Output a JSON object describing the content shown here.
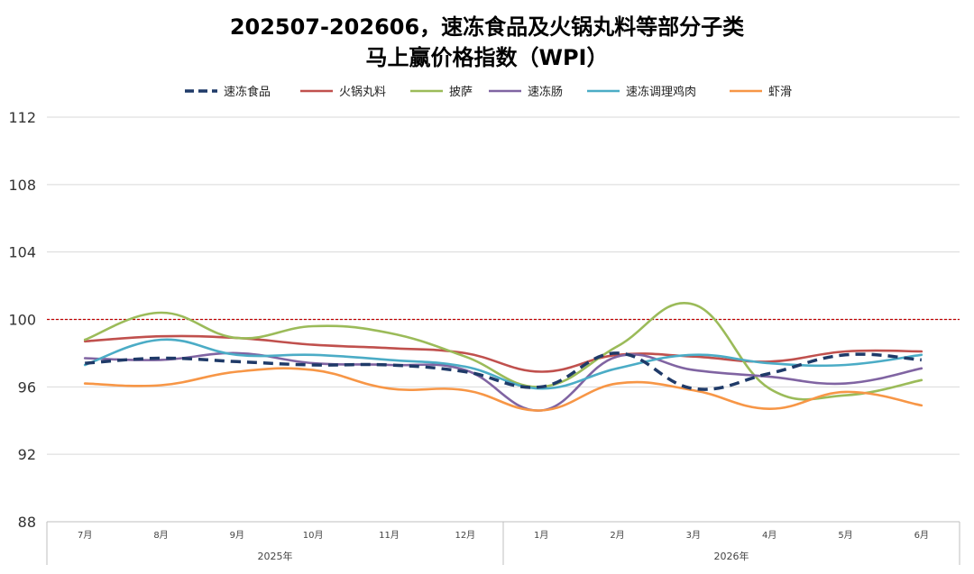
{
  "chart_data": {
    "type": "line",
    "title": [
      "202507-202606，速冻食品及火锅丸料等部分子类",
      "马上赢价格指数（WPI）"
    ],
    "categories": [
      "7月",
      "8月",
      "9月",
      "10月",
      "11月",
      "12月",
      "1月",
      "2月",
      "3月",
      "4月",
      "5月",
      "6月"
    ],
    "year_groups": [
      {
        "label": "2025年",
        "span": 6
      },
      {
        "label": "2026年",
        "span": 6
      }
    ],
    "ylim": [
      88,
      112
    ],
    "yticks": [
      "88",
      "92",
      "96",
      "100",
      "104",
      "108",
      "112"
    ],
    "reference_line": {
      "value": 100,
      "color": "#c00000"
    },
    "grid": true,
    "legend_position": "top",
    "series": [
      {
        "name": "速冻食品",
        "color": "#1f3a68",
        "dashed": true,
        "values": [
          97.4,
          97.7,
          97.5,
          97.3,
          97.3,
          96.9,
          96.0,
          98.0,
          95.9,
          96.8,
          97.9,
          97.6
        ]
      },
      {
        "name": "火锅丸料",
        "color": "#c0504d",
        "dashed": false,
        "values": [
          98.7,
          99.0,
          98.9,
          98.5,
          98.3,
          98.0,
          96.9,
          97.9,
          97.8,
          97.5,
          98.1,
          98.1
        ]
      },
      {
        "name": "披萨",
        "color": "#9bbb59",
        "dashed": false,
        "values": [
          98.8,
          100.4,
          98.9,
          99.6,
          99.2,
          97.8,
          96.0,
          98.4,
          100.9,
          95.9,
          95.5,
          96.4
        ]
      },
      {
        "name": "速冻肠",
        "color": "#8064a2",
        "dashed": false,
        "values": [
          97.7,
          97.6,
          98.0,
          97.4,
          97.3,
          97.0,
          94.6,
          97.8,
          97.0,
          96.6,
          96.2,
          97.1
        ]
      },
      {
        "name": "速冻调理鸡肉",
        "color": "#4bacc6",
        "dashed": false,
        "values": [
          97.3,
          98.8,
          97.9,
          97.9,
          97.6,
          97.2,
          95.9,
          97.1,
          97.9,
          97.4,
          97.3,
          97.9
        ]
      },
      {
        "name": "虾滑",
        "color": "#f79646",
        "dashed": false,
        "values": [
          96.2,
          96.1,
          96.9,
          97.0,
          95.9,
          95.8,
          94.6,
          96.2,
          95.8,
          94.7,
          95.7,
          94.9
        ]
      }
    ]
  }
}
